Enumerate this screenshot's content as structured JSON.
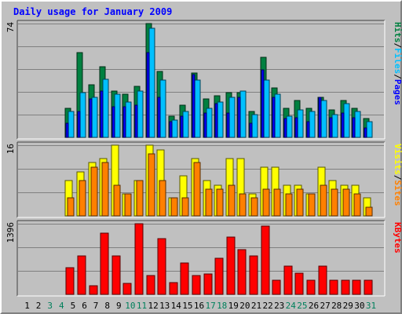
{
  "chart_data": {
    "type": "bar",
    "title": "Daily usage for January 2009",
    "x": [
      1,
      2,
      3,
      4,
      5,
      6,
      7,
      8,
      9,
      10,
      11,
      12,
      13,
      14,
      15,
      16,
      17,
      18,
      19,
      20,
      21,
      22,
      23,
      24,
      25,
      26,
      27,
      28,
      29,
      30,
      31
    ],
    "weekend_days": [
      3,
      4,
      10,
      11,
      17,
      18,
      24,
      25,
      31
    ],
    "panels": [
      {
        "name": "hits-files-pages",
        "ymax_label": "74",
        "ymax": 74,
        "side_label": [
          "Pages",
          "/",
          "Files",
          "/",
          "Hits"
        ],
        "series": [
          {
            "name": "Hits",
            "color": "#008040",
            "values": [
              0,
              0,
              0,
              0,
              19,
              55,
              34,
              46,
              30,
              28,
              33,
              74,
              43,
              14,
              21,
              42,
              25,
              27,
              29,
              29,
              17,
              52,
              32,
              19,
              24,
              19,
              26,
              18,
              24,
              19,
              12
            ]
          },
          {
            "name": "Files",
            "color": "#00c0ff",
            "values": [
              0,
              0,
              0,
              0,
              17,
              29,
              26,
              38,
              28,
              23,
              30,
              71,
              37,
              11,
              17,
              37,
              19,
              23,
              26,
              30,
              15,
              37,
              28,
              14,
              18,
              17,
              24,
              15,
              22,
              17,
              10
            ]
          },
          {
            "name": "Pages",
            "color": "#0000ff",
            "values": [
              0,
              0,
              0,
              0,
              9,
              17,
              25,
              30,
              20,
              20,
              21,
              55,
              26,
              10,
              14,
              41,
              16,
              22,
              16,
              26,
              9,
              44,
              26,
              12,
              13,
              10,
              26,
              13,
              16,
              13,
              6
            ]
          }
        ]
      },
      {
        "name": "visits-sites",
        "ymax_label": "16",
        "ymax": 16,
        "side_label": [
          "Sites",
          "/",
          "Visits"
        ],
        "series": [
          {
            "name": "Visits",
            "color": "#ffff00",
            "values": [
              0,
              0,
              0,
              0,
              8,
              10,
              12,
              13,
              16,
              5,
              8,
              16,
              15,
              4,
              9,
              13,
              8,
              7,
              13,
              13,
              5,
              11,
              11,
              7,
              7,
              5,
              11,
              8,
              7,
              7,
              4
            ]
          },
          {
            "name": "Sites",
            "color": "#ff8000",
            "values": [
              0,
              0,
              0,
              0,
              4,
              8,
              11,
              12,
              7,
              5,
              8,
              14,
              8,
              4,
              4,
              12,
              6,
              6,
              7,
              5,
              4,
              6,
              6,
              5,
              6,
              5,
              7,
              6,
              6,
              5,
              2
            ]
          }
        ]
      },
      {
        "name": "kbytes",
        "ymax_label": "1396",
        "ymax": 1396,
        "side_label": [
          "KBytes"
        ],
        "series": [
          {
            "name": "KBytes",
            "color": "#ff0000",
            "values": [
              0,
              0,
              0,
              0,
              530,
              754,
              168,
              1207,
              754,
              223,
              1396,
              370,
              1096,
              225,
              614,
              370,
              398,
              720,
              1135,
              888,
              754,
              1346,
              280,
              558,
              423,
              280,
              558,
              280,
              280,
              280,
              280
            ]
          }
        ]
      }
    ]
  },
  "colors": {
    "title": "#0000ff",
    "weekday_label": "#000000",
    "weekend_label": "#00805c",
    "panel_bg": "#c0c0c0"
  }
}
